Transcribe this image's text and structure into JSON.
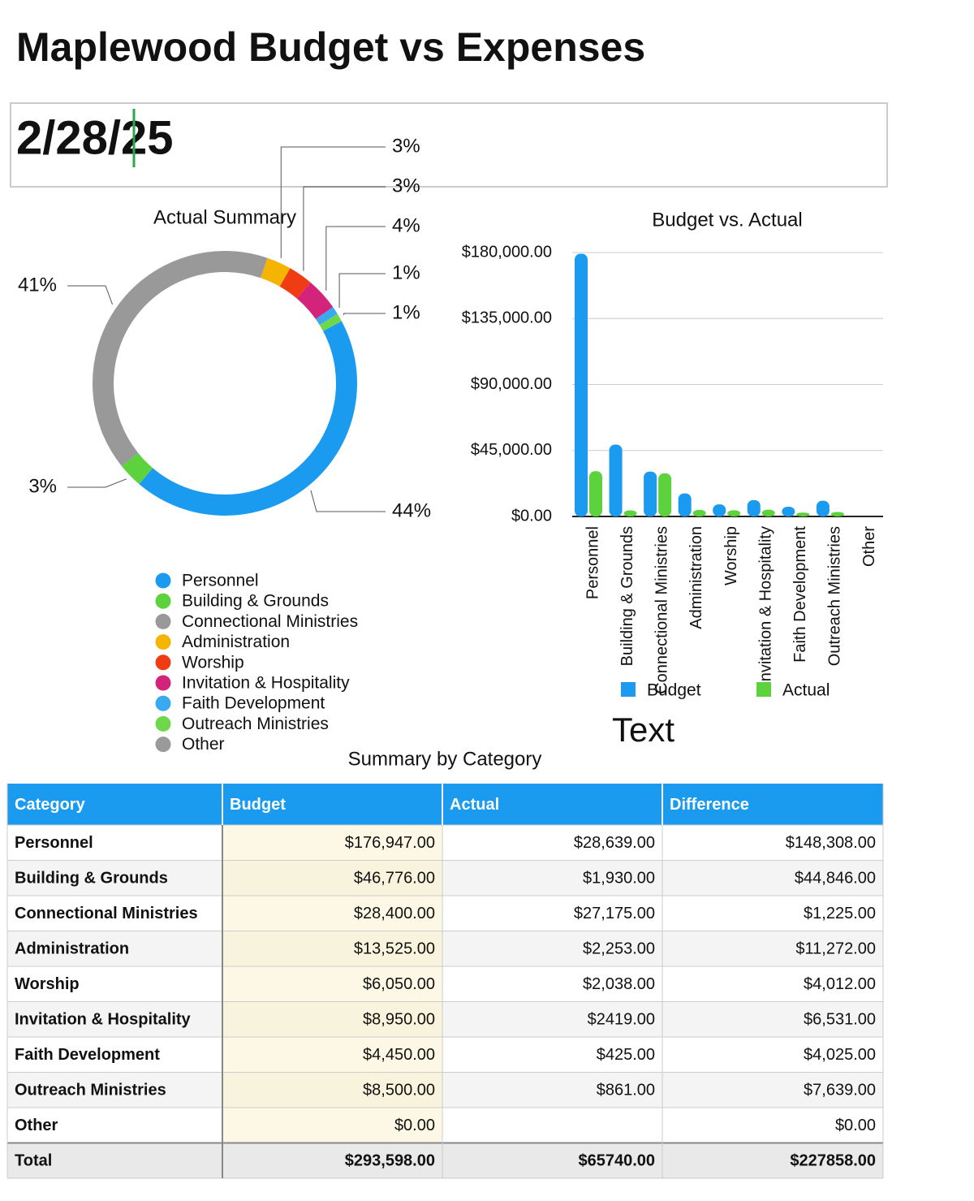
{
  "title": "Maplewood Budget vs Expenses",
  "date": "2/28/25",
  "chart_data": [
    {
      "type": "donut",
      "title": "Actual Summary",
      "categories": [
        "Personnel",
        "Building & Grounds",
        "Connectional Ministries",
        "Administration",
        "Worship",
        "Invitation & Hospitality",
        "Faith Development",
        "Outreach Ministries",
        "Other"
      ],
      "values": [
        44,
        3,
        41,
        3,
        3,
        4,
        1,
        1,
        0
      ],
      "value_labels": [
        "44%",
        "3%",
        "41%",
        "3%",
        "3%",
        "4%",
        "1%",
        "1%",
        null
      ],
      "colors": [
        "#1a9bf0",
        "#5cd23c",
        "#999999",
        "#f5b400",
        "#f03c14",
        "#d4237a",
        "#3aaaf0",
        "#6fd84a",
        "#9a9a9a"
      ]
    },
    {
      "type": "bar",
      "title": "Budget vs. Actual",
      "categories": [
        "Personnel",
        "Building & Grounds",
        "Connectional Ministries",
        "Administration",
        "Worship",
        "Invitation & Hospitality",
        "Faith Development",
        "Outreach Ministries",
        "Other"
      ],
      "series": [
        {
          "name": "Budget",
          "color": "#1a9bf0",
          "values": [
            176947,
            46776,
            28400,
            13525,
            6050,
            8950,
            4450,
            8500,
            0
          ]
        },
        {
          "name": "Actual",
          "color": "#5cd23c",
          "values": [
            28639,
            1930,
            27175,
            2253,
            2038,
            2419,
            425,
            861,
            null
          ]
        }
      ],
      "ylim": [
        0,
        180000
      ],
      "yticks": [
        {
          "value": 0,
          "label": "$0.00"
        },
        {
          "value": 45000,
          "label": "$45,000.00"
        },
        {
          "value": 90000,
          "label": "$90,000.00"
        },
        {
          "value": 135000,
          "label": "$135,000.00"
        },
        {
          "value": 180000,
          "label": "$180,000.00"
        }
      ],
      "grid": true
    }
  ],
  "text_box": "Text",
  "table": {
    "title": "Summary by Category",
    "header": [
      "Category",
      "Budget",
      "Actual",
      "Difference"
    ],
    "rows": [
      [
        "Personnel",
        "$176,947.00",
        "$28,639.00",
        "$148,308.00"
      ],
      [
        "Building & Grounds",
        "$46,776.00",
        "$1,930.00",
        "$44,846.00"
      ],
      [
        "Connectional Ministries",
        "$28,400.00",
        "$27,175.00",
        "$1,225.00"
      ],
      [
        "Administration",
        "$13,525.00",
        "$2,253.00",
        "$11,272.00"
      ],
      [
        "Worship",
        "$6,050.00",
        "$2,038.00",
        "$4,012.00"
      ],
      [
        "Invitation & Hospitality",
        "$8,950.00",
        "$2419.00",
        "$6,531.00"
      ],
      [
        "Faith Development",
        "$4,450.00",
        "$425.00",
        "$4,025.00"
      ],
      [
        "Outreach Ministries",
        "$8,500.00",
        "$861.00",
        "$7,639.00"
      ],
      [
        "Other",
        "$0.00",
        null,
        "$0.00"
      ]
    ],
    "total": [
      "Total",
      "$293,598.00",
      "$65740.00",
      "$227858.00"
    ]
  }
}
